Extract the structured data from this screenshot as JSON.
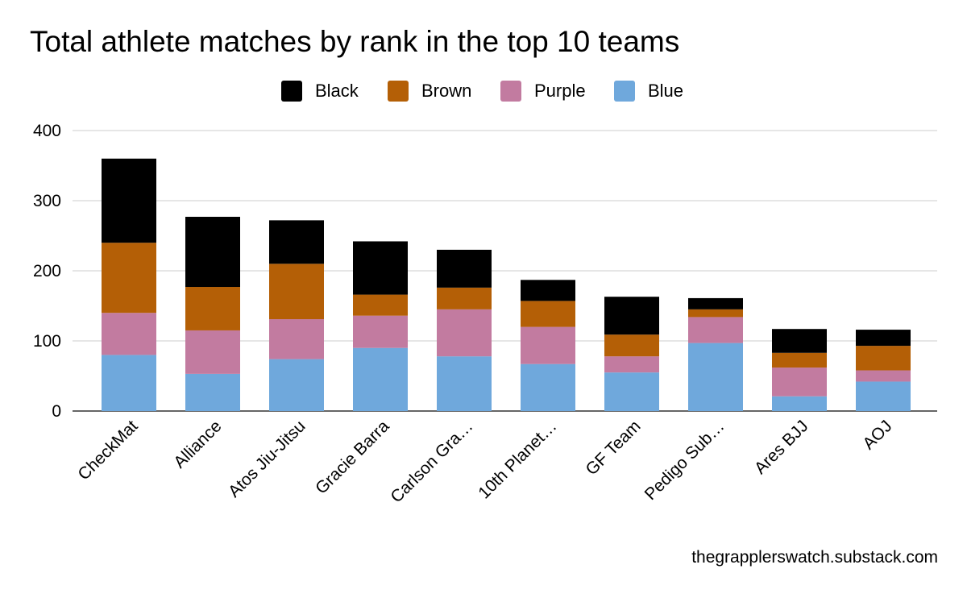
{
  "chart_data": {
    "type": "bar",
    "stacked": true,
    "title": "Total athlete matches by rank in the top 10 teams",
    "xlabel": "",
    "ylabel": "",
    "ylim": [
      0,
      400
    ],
    "yticks": [
      0,
      100,
      200,
      300,
      400
    ],
    "grid": true,
    "legend_position": "top",
    "categories": [
      "CheckMat",
      "Alliance",
      "Atos Jiu-Jitsu",
      "Gracie Barra",
      "Carlson Gra…",
      "10th Planet…",
      "GF Team",
      "Pedigo Sub…",
      "Ares BJJ",
      "AOJ"
    ],
    "series": [
      {
        "name": "Blue",
        "color": "#6fa8dc",
        "values": [
          80,
          53,
          74,
          90,
          78,
          67,
          55,
          97,
          21,
          42
        ]
      },
      {
        "name": "Purple",
        "color": "#c27ba0",
        "values": [
          60,
          62,
          57,
          46,
          67,
          53,
          23,
          37,
          41,
          16
        ]
      },
      {
        "name": "Brown",
        "color": "#b45f06",
        "values": [
          100,
          62,
          79,
          30,
          31,
          37,
          31,
          11,
          21,
          35
        ]
      },
      {
        "name": "Black",
        "color": "#000000",
        "values": [
          120,
          100,
          62,
          76,
          54,
          30,
          54,
          16,
          34,
          23
        ]
      }
    ],
    "legend_order": [
      "Black",
      "Brown",
      "Purple",
      "Blue"
    ]
  },
  "source_note": "thegrapplerswatch.substack.com"
}
